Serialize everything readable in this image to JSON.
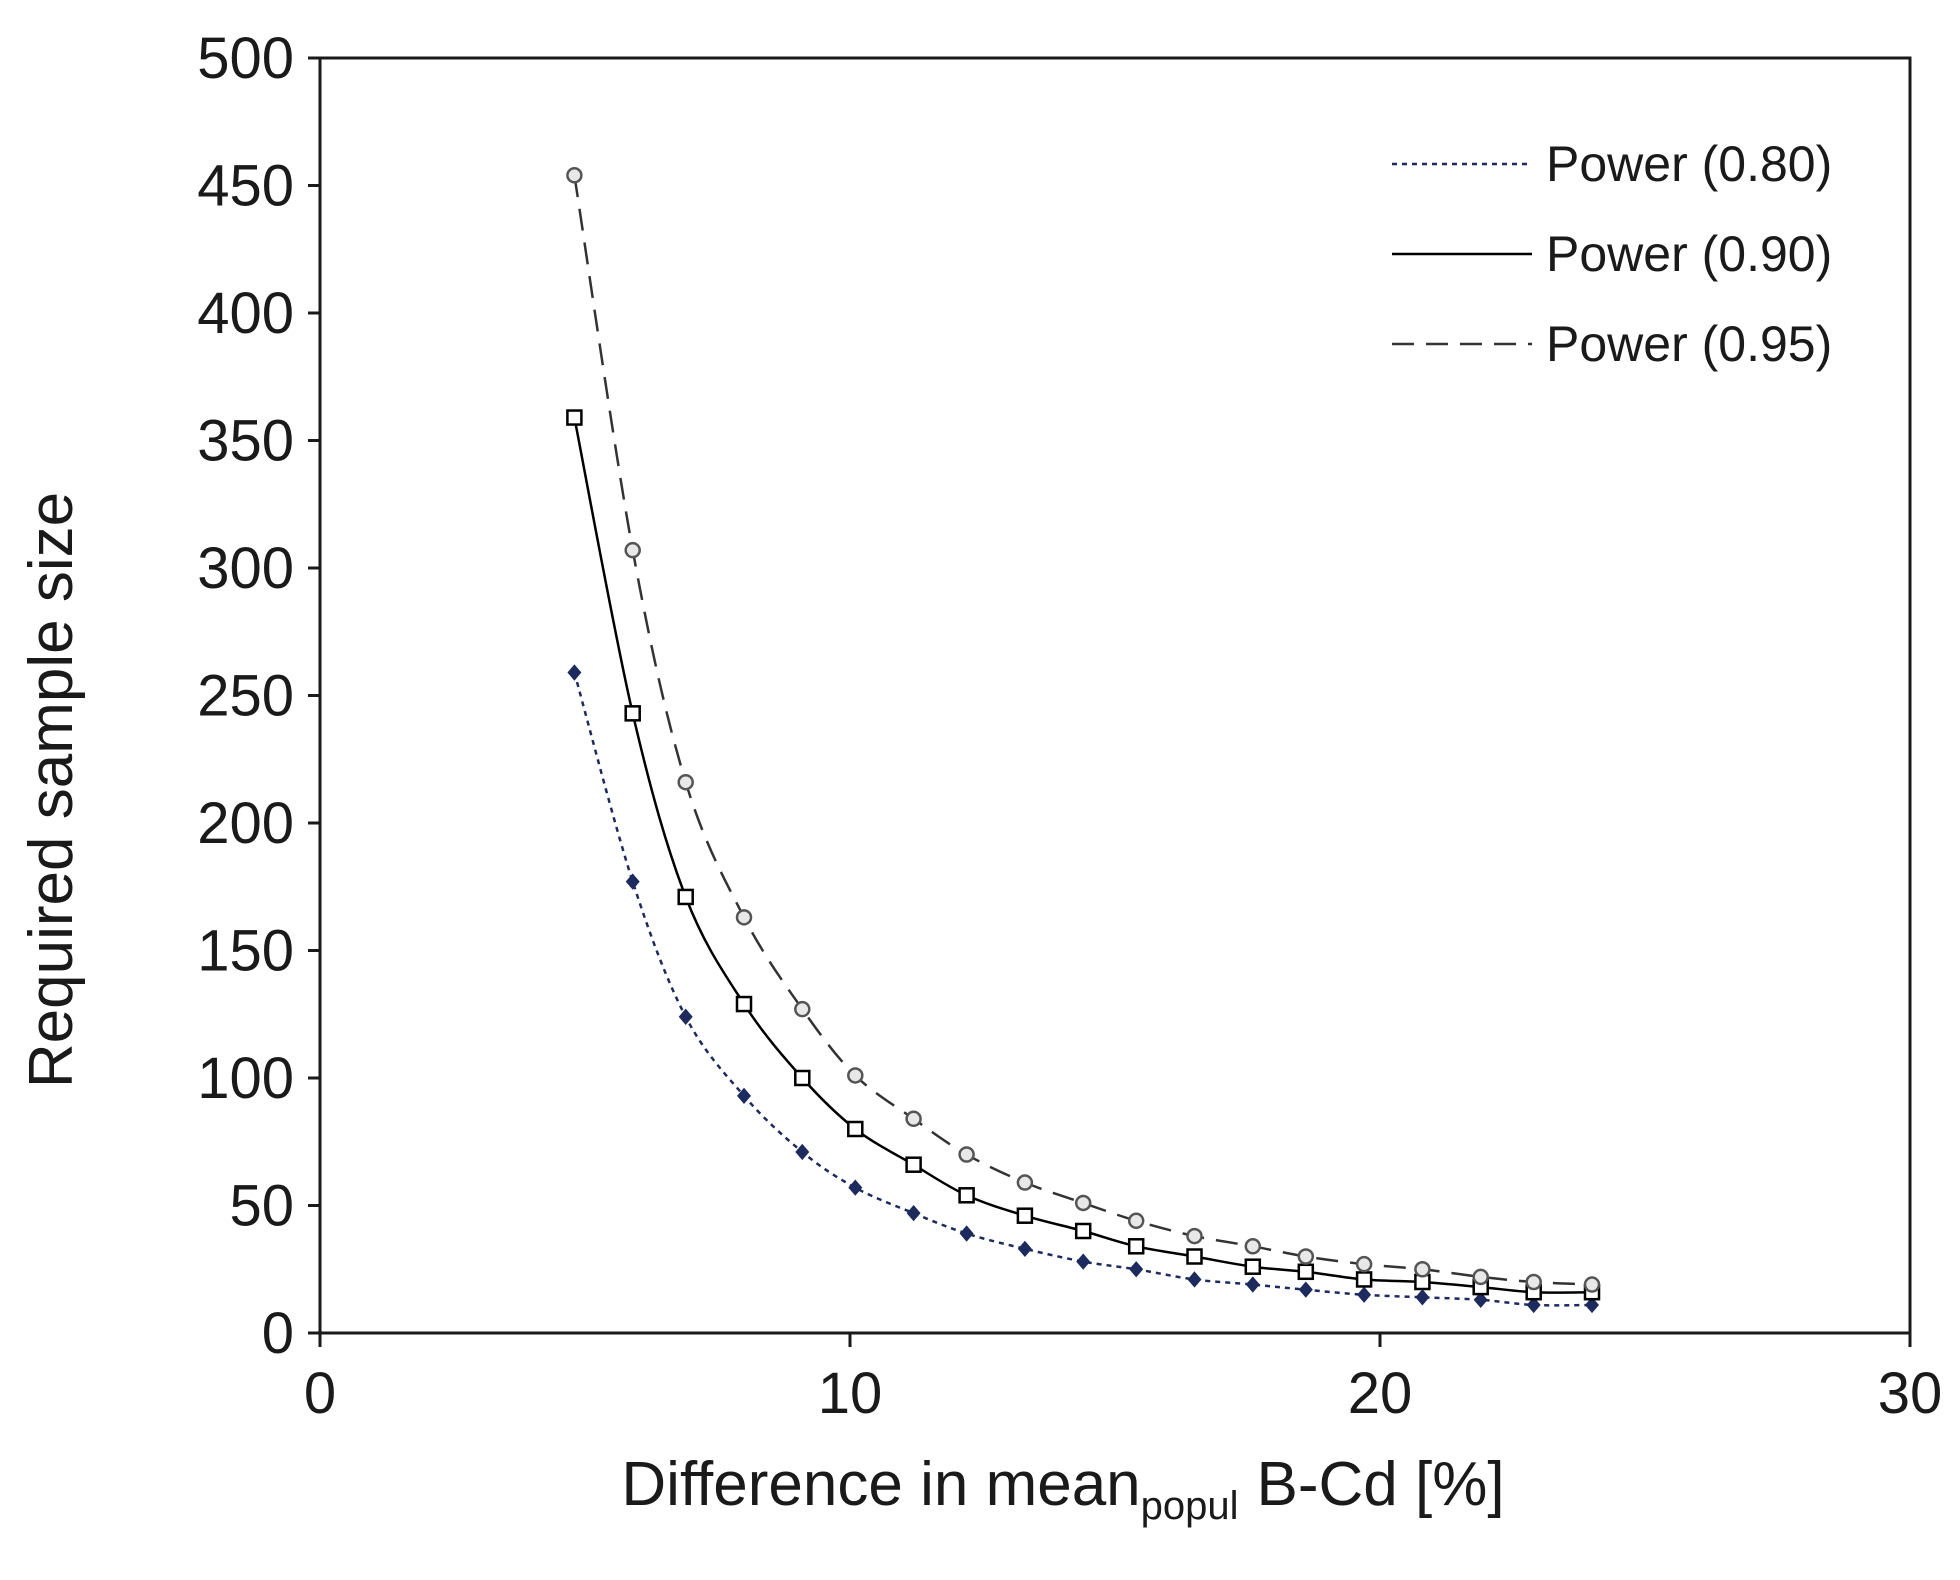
{
  "chart_data": {
    "type": "line",
    "title": "",
    "xlabel": {
      "main": "Difference in mean",
      "subscript": "popul",
      "suffix": "B-Cd [%]"
    },
    "ylabel": "Required sample size",
    "xlim": [
      0,
      30
    ],
    "ylim": [
      0,
      500
    ],
    "x_ticks": [
      0,
      10,
      20,
      30
    ],
    "y_ticks": [
      0,
      50,
      100,
      150,
      200,
      250,
      300,
      350,
      400,
      450,
      500
    ],
    "grid": false,
    "legend_position": "top-right",
    "x": [
      4.8,
      5.9,
      6.9,
      8.0,
      9.1,
      10.1,
      11.2,
      12.2,
      13.3,
      14.4,
      15.4,
      16.5,
      17.6,
      18.6,
      19.7,
      20.8,
      21.9,
      22.9,
      24.0
    ],
    "series": [
      {
        "name": "Power (0.80)",
        "line_style": "dotted",
        "marker": "diamond",
        "color": "#1c2a5e",
        "values": [
          259,
          177,
          124,
          93,
          71,
          57,
          47,
          39,
          33,
          28,
          25,
          21,
          19,
          17,
          15,
          14,
          13,
          11,
          11
        ]
      },
      {
        "name": "Power (0.90)",
        "line_style": "solid",
        "marker": "square",
        "color": "#000000",
        "values": [
          359,
          243,
          171,
          129,
          100,
          80,
          66,
          54,
          46,
          40,
          34,
          30,
          26,
          24,
          21,
          20,
          18,
          16,
          16
        ]
      },
      {
        "name": "Power (0.95)",
        "line_style": "dashed",
        "marker": "circle",
        "color": "#333333",
        "values": [
          454,
          307,
          216,
          163,
          127,
          101,
          84,
          70,
          59,
          51,
          44,
          38,
          34,
          30,
          27,
          25,
          22,
          20,
          19
        ]
      }
    ]
  }
}
